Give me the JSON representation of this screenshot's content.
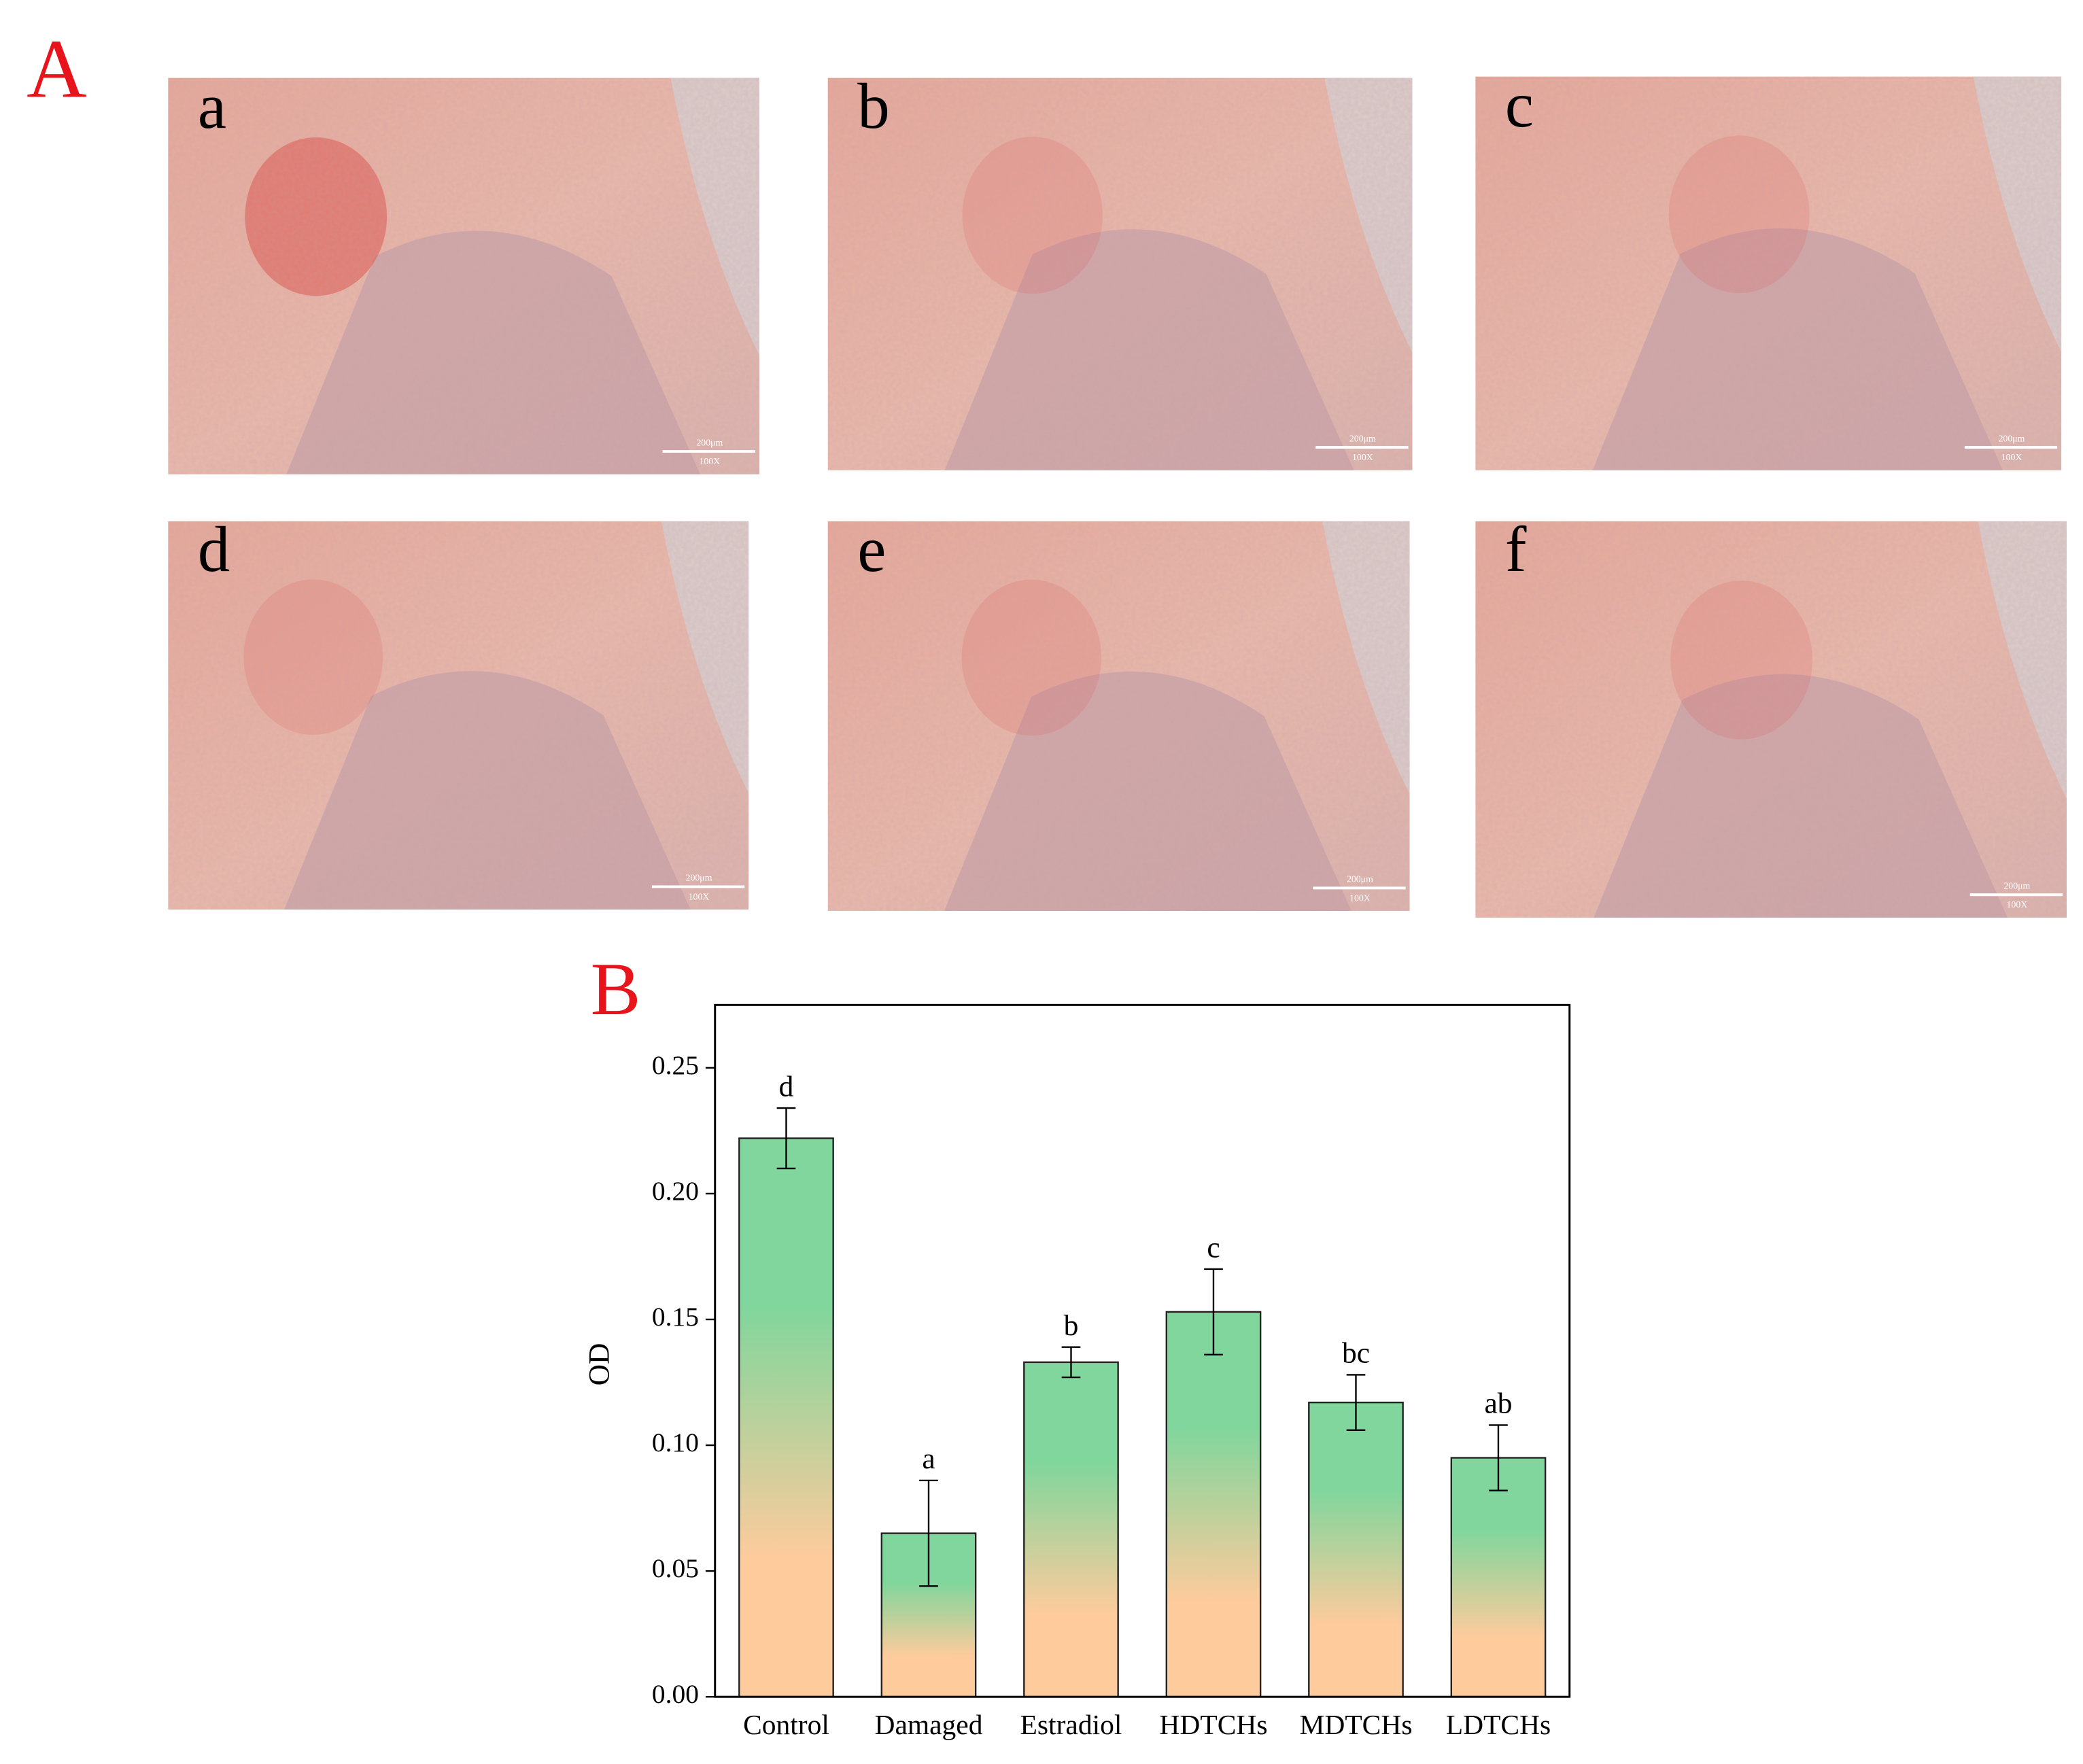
{
  "figure": {
    "panel_a_label": "A",
    "panel_b_label": "B",
    "micrographs": [
      {
        "label": "a",
        "scale_text": "200μm",
        "magnification": "100X"
      },
      {
        "label": "b",
        "scale_text": "200μm",
        "magnification": "100X"
      },
      {
        "label": "c",
        "scale_text": "200μm",
        "magnification": "100X"
      },
      {
        "label": "d",
        "scale_text": "200μm",
        "magnification": "100X"
      },
      {
        "label": "e",
        "scale_text": "200μm",
        "magnification": "100X"
      },
      {
        "label": "f",
        "scale_text": "200μm",
        "magnification": "100X"
      }
    ]
  },
  "chart_data": {
    "type": "bar",
    "y_label": "OD",
    "categories": [
      "Control",
      "Damaged",
      "Estradiol",
      "HDTCHs",
      "MDTCHs",
      "LDTCHs"
    ],
    "values": [
      0.222,
      0.065,
      0.133,
      0.153,
      0.117,
      0.095
    ],
    "errors": [
      0.012,
      0.021,
      0.006,
      0.017,
      0.011,
      0.013
    ],
    "annotations": [
      "d",
      "a",
      "b",
      "c",
      "bc",
      "ab"
    ],
    "ylim": [
      0,
      0.275
    ],
    "yticks": [
      {
        "value": 0,
        "label": "0.00"
      },
      {
        "value": 0.05,
        "label": "0.05"
      },
      {
        "value": 0.1,
        "label": "0.10"
      },
      {
        "value": 0.15,
        "label": "0.15"
      },
      {
        "value": 0.2,
        "label": "0.20"
      },
      {
        "value": 0.25,
        "label": "0.25"
      }
    ],
    "gradient_colors": [
      "#80d69c",
      "#fdcb9c"
    ]
  }
}
